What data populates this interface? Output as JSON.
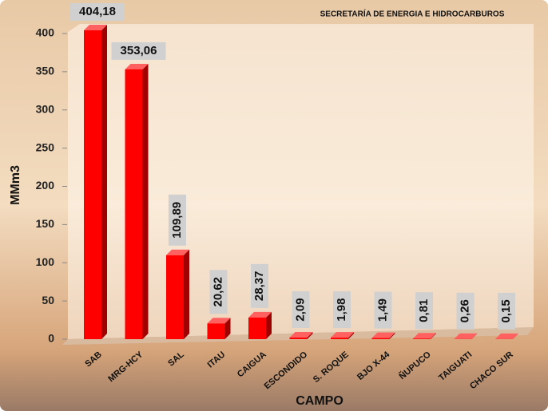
{
  "chart_data": {
    "type": "bar",
    "subtitle": "SECRETARÍA DE ENERGIA E HIDROCARBUROS",
    "x_label": "CAMPO",
    "y_label": "MMm3",
    "categories": [
      "SAB",
      "MRG-HCY",
      "SAL",
      "ITAU",
      "CAIGUA",
      "ESCONDIDO",
      "S. ROQUE",
      "BJO X-44",
      "ÑUPUCO",
      "TAIGUATI",
      "CHACO SUR"
    ],
    "values": [
      404.18,
      353.06,
      109.89,
      20.62,
      28.37,
      2.09,
      1.98,
      1.49,
      0.81,
      0.26,
      0.15
    ],
    "value_labels": [
      "404,18",
      "353,06",
      "109,89",
      "20,62",
      "28,37",
      "2,09",
      "1,98",
      "1,49",
      "0,81",
      "0,26",
      "0,15"
    ],
    "color": "#ff0000",
    "ylim": [
      0,
      400
    ],
    "yticks": [
      0,
      50,
      100,
      150,
      200,
      250,
      300,
      350,
      400
    ]
  }
}
